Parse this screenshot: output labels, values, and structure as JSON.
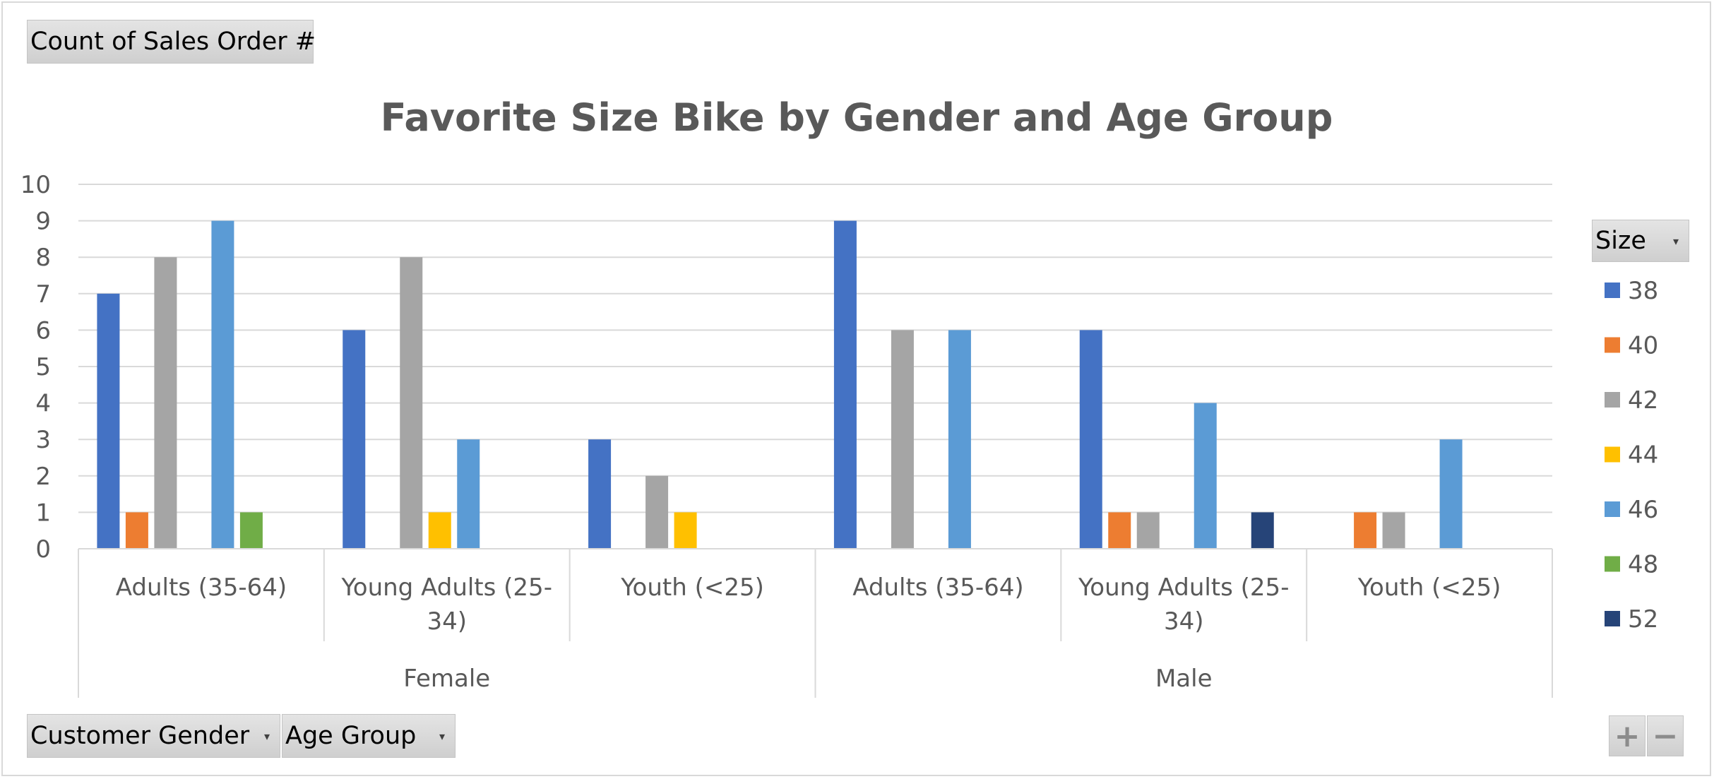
{
  "value_field_button": {
    "label": "Count of Sales Order #"
  },
  "legend": {
    "title": "Size",
    "arrow": "▾"
  },
  "axis_field_buttons": [
    {
      "label": "Customer Gender",
      "arrow": "▾"
    },
    {
      "label": "Age Group",
      "arrow": "▾"
    }
  ],
  "zoom_controls": {
    "plus": "+",
    "minus": "−"
  },
  "colors": {
    "38": "#4472c4",
    "40": "#ed7d31",
    "42": "#a5a5a5",
    "44": "#ffc000",
    "46": "#5b9bd5",
    "48": "#70ad47",
    "52": "#264478",
    "gridline": "#d9d9d9",
    "text": "#595959"
  },
  "chart_data": {
    "type": "bar",
    "title": "Favorite Size Bike by Gender and Age Group",
    "xlabel": "",
    "ylabel": "",
    "ylim": [
      0,
      10
    ],
    "yticks": [
      0,
      1,
      2,
      3,
      4,
      5,
      6,
      7,
      8,
      9,
      10
    ],
    "grid": true,
    "legend_position": "right",
    "groups": [
      {
        "label": "Female",
        "categories": [
          "Adults (35-64)",
          "Young Adults (25-34)",
          "Youth (<25)"
        ]
      },
      {
        "label": "Male",
        "categories": [
          "Adults (35-64)",
          "Young Adults (25-34)",
          "Youth (<25)"
        ]
      }
    ],
    "categories": [
      "Female | Adults (35-64)",
      "Female | Young Adults (25-34)",
      "Female | Youth (<25)",
      "Male | Adults (35-64)",
      "Male | Young Adults (25-34)",
      "Male | Youth (<25)"
    ],
    "series": [
      {
        "name": "38",
        "values": [
          7,
          6,
          3,
          9,
          6,
          null
        ]
      },
      {
        "name": "40",
        "values": [
          1,
          null,
          null,
          null,
          1,
          1
        ]
      },
      {
        "name": "42",
        "values": [
          8,
          8,
          2,
          6,
          1,
          1
        ]
      },
      {
        "name": "44",
        "values": [
          null,
          1,
          1,
          null,
          null,
          null
        ]
      },
      {
        "name": "46",
        "values": [
          9,
          3,
          null,
          6,
          4,
          3
        ]
      },
      {
        "name": "48",
        "values": [
          1,
          null,
          null,
          null,
          null,
          null
        ]
      },
      {
        "name": "52",
        "values": [
          null,
          null,
          null,
          null,
          1,
          null
        ]
      }
    ]
  }
}
